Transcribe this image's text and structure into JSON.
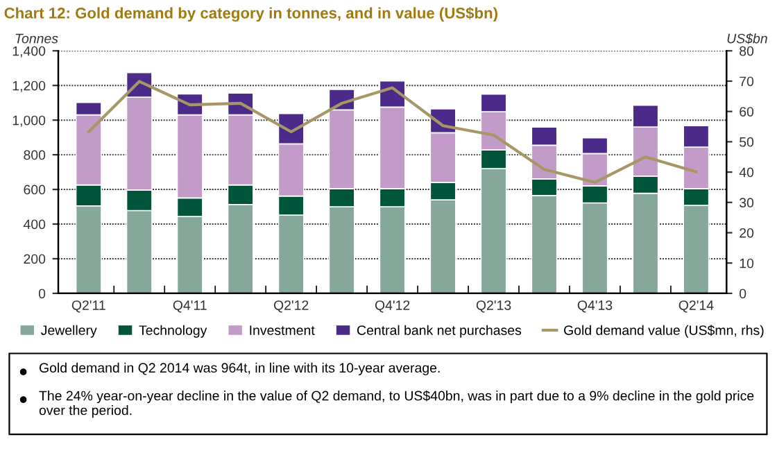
{
  "chart_data": {
    "type": "bar",
    "title": "Chart 12: Gold demand by category in tonnes, and in value (US$bn)",
    "ylabel": "Tonnes",
    "y2label": "US$bn",
    "categories": [
      "Q2'11",
      null,
      "Q4'11",
      null,
      "Q2'12",
      null,
      "Q4'12",
      null,
      "Q2'13",
      null,
      "Q4'13",
      null,
      "Q2'14"
    ],
    "stacked": true,
    "series": [
      {
        "name": "Jewellery",
        "color": "#85a89a",
        "values": [
          505,
          478,
          444,
          513,
          452,
          500,
          500,
          540,
          720,
          565,
          522,
          578,
          508
        ]
      },
      {
        "name": "Technology",
        "color": "#00553a",
        "values": [
          121,
          119,
          107,
          113,
          110,
          105,
          105,
          100,
          108,
          96,
          99,
          99,
          97
        ]
      },
      {
        "name": "Investment",
        "color": "#c29bc9",
        "values": [
          404,
          535,
          479,
          404,
          301,
          454,
          470,
          287,
          220,
          194,
          186,
          283,
          239
        ]
      },
      {
        "name": "Central bank net purchases",
        "color": "#4b2a8a",
        "values": [
          72,
          142,
          121,
          126,
          175,
          118,
          151,
          138,
          102,
          105,
          91,
          126,
          124
        ]
      },
      {
        "name": "Gold demand value (US$mn, rhs)",
        "type": "line",
        "axis": "y2",
        "color": "#a89766",
        "values": [
          53.3,
          69.9,
          62.2,
          62.7,
          53.3,
          62.7,
          67.8,
          55.3,
          52.2,
          40.9,
          36.6,
          45.0,
          40.1
        ]
      }
    ],
    "ylim": [
      0,
      1400
    ],
    "yticks": [
      0,
      200,
      400,
      600,
      800,
      {
        "value": 1000,
        "label": "1,000"
      },
      {
        "value": 1200,
        "label": "1,200"
      },
      {
        "value": 1400,
        "label": "1,400"
      }
    ],
    "y2lim": [
      0,
      80
    ],
    "y2ticks": [
      0,
      10,
      20,
      30,
      40,
      50,
      60,
      70,
      80
    ],
    "grid": "y",
    "legend": "bottom",
    "marker": "none",
    "line_style": "solid",
    "annotations": [
      "Gold demand in Q2 2014 was 964t, in line with its 10-year average.",
      "The 24% year-on-year decline in the value of Q2 demand, to US$40bn, was in part due to a 9% decline in the gold price over the period."
    ]
  }
}
